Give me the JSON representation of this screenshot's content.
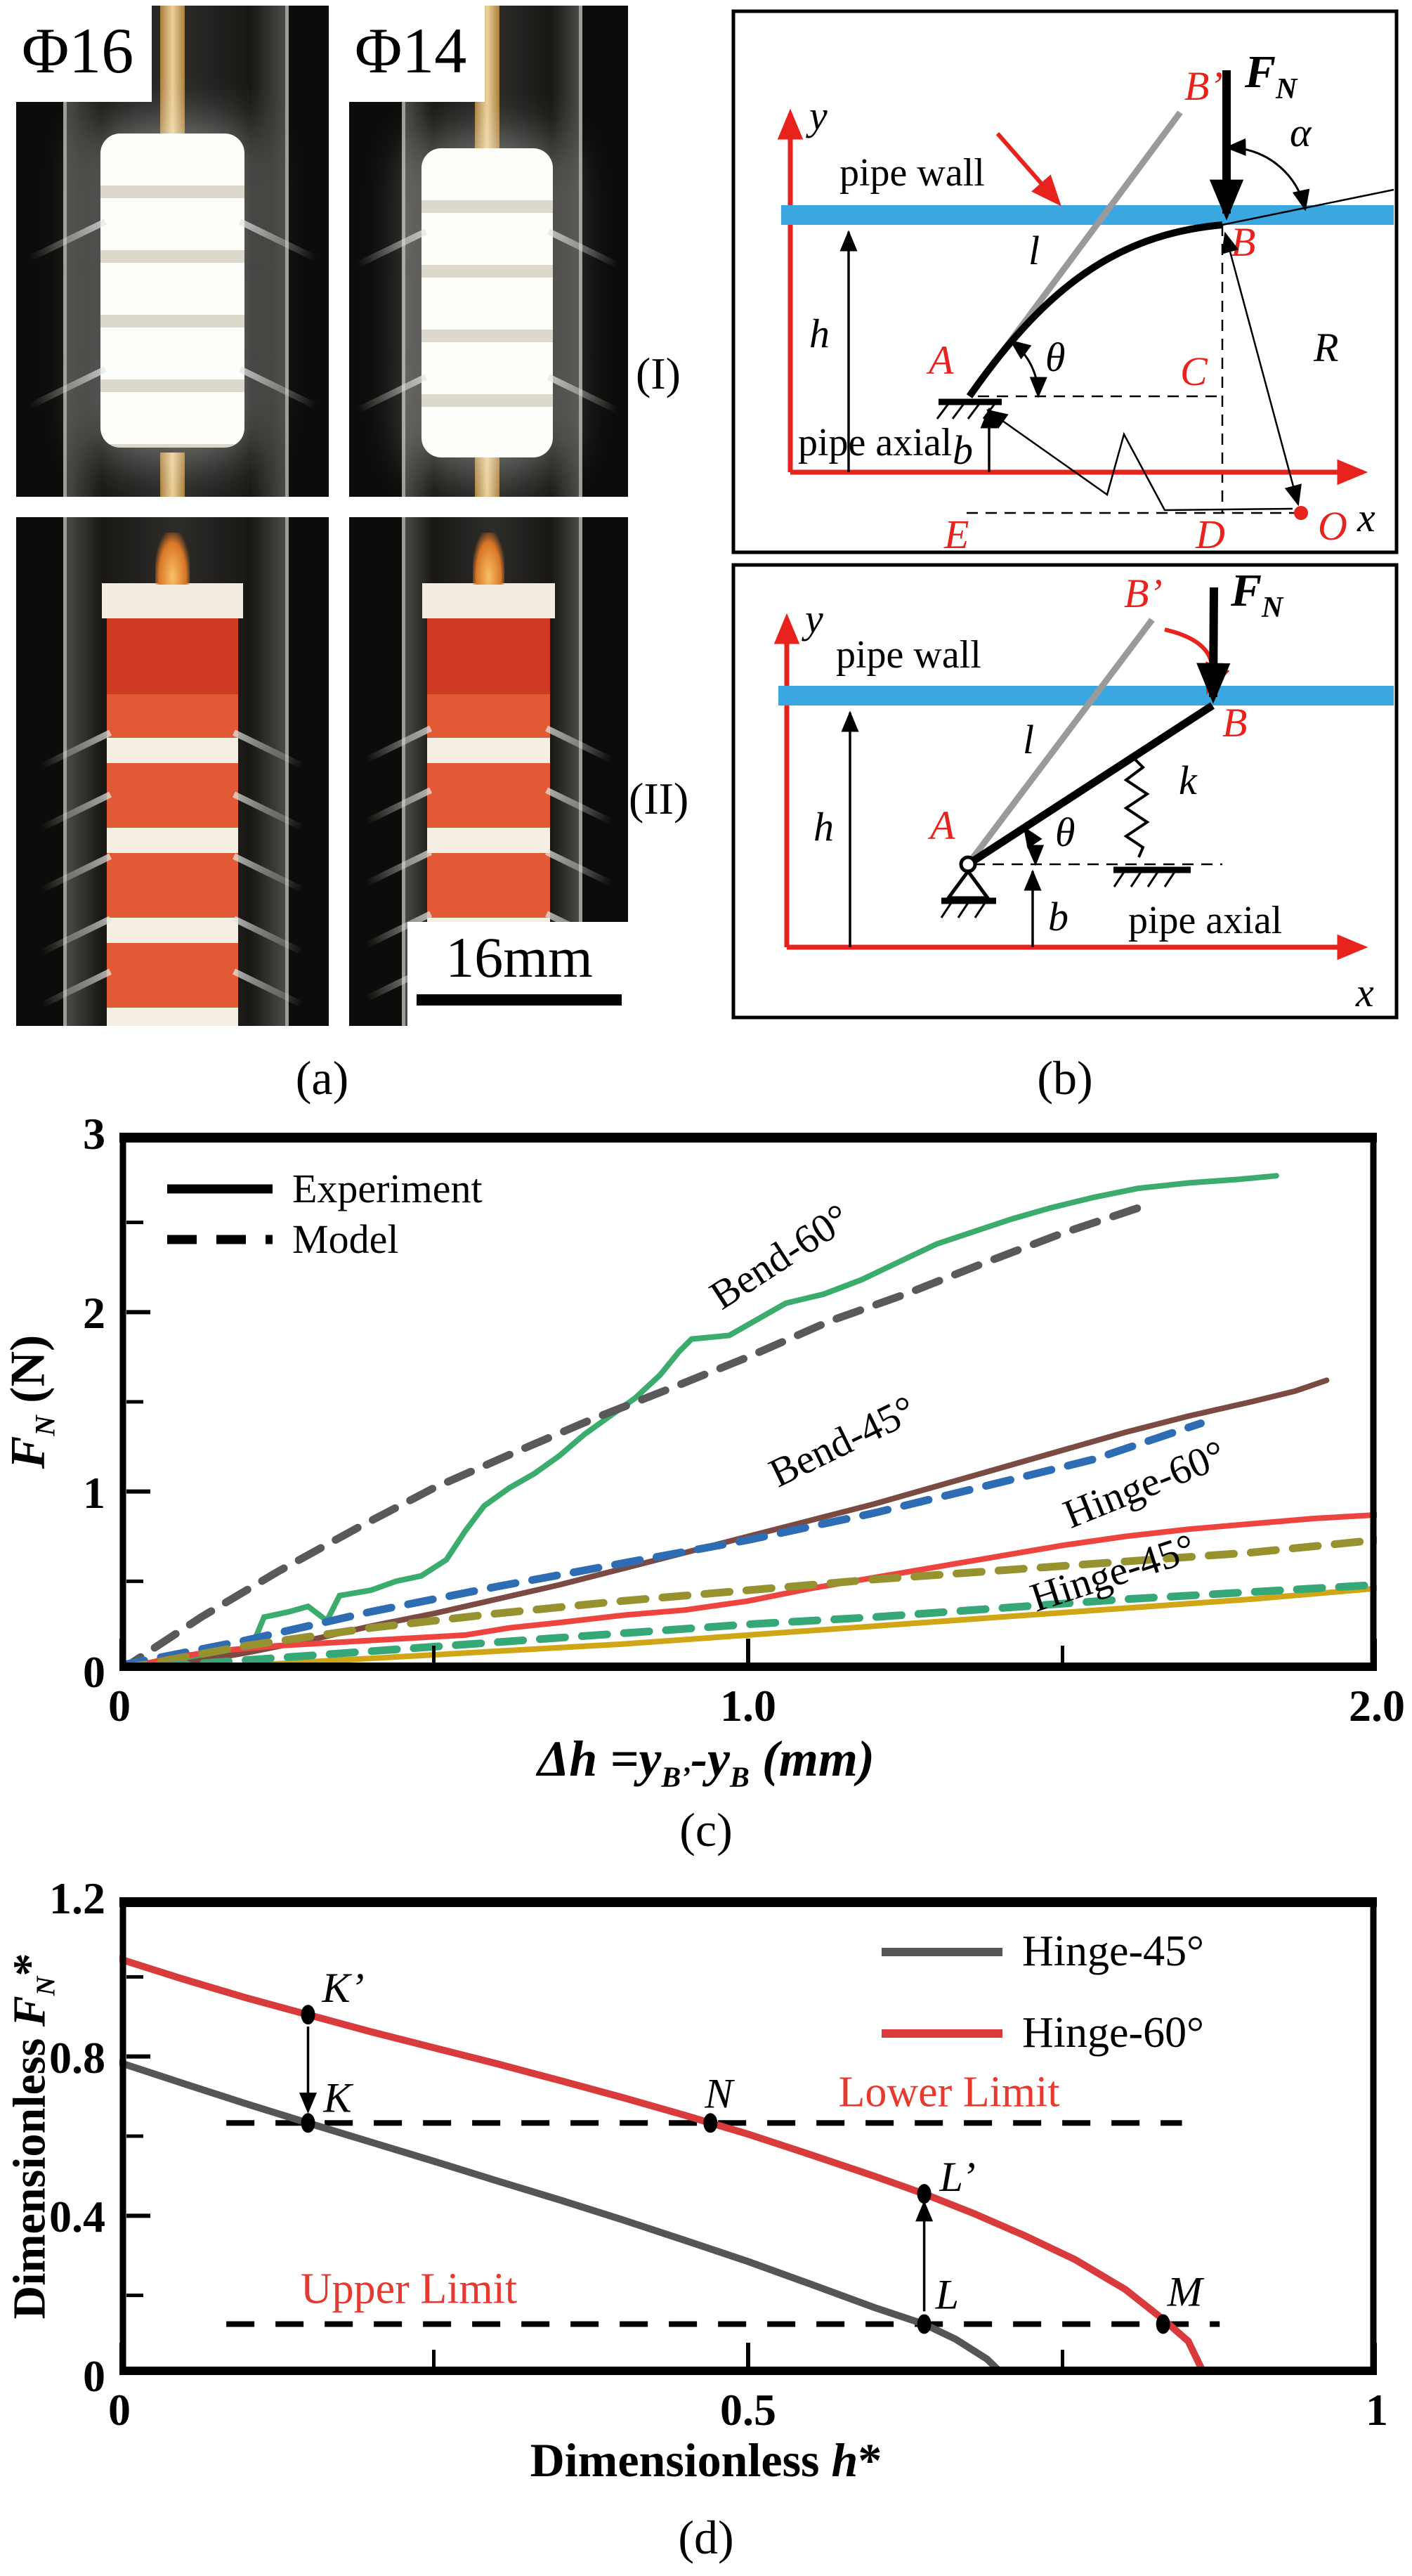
{
  "colors": {
    "diagram_red": "#e8231d",
    "pipe_wall_blue": "#3aa7e0",
    "gray_line": "#9a9a9a",
    "limit_text_red": "#e8392f"
  },
  "panel_a": {
    "caption": "(a)",
    "photo_labels": [
      "Φ16",
      "Φ14"
    ],
    "scale_bar": "16mm"
  },
  "panel_b": {
    "caption": "(b)",
    "roman1": "(I)",
    "roman2": "(II)",
    "d1": {
      "pipe_wall": "pipe wall",
      "pipe_axial": "pipe axial",
      "y": "y",
      "x": "x",
      "h": "h",
      "b": "b",
      "l": "l",
      "theta": "θ",
      "alpha": "α",
      "R": "R",
      "F": "F",
      "F_sub": "N",
      "A": "A",
      "B": "B",
      "Bp": "B’",
      "C": "C",
      "D": "D",
      "E": "E",
      "O": "O"
    },
    "d2": {
      "pipe_wall": "pipe wall",
      "pipe_axial": "pipe axial",
      "y": "y",
      "x": "x",
      "h": "h",
      "b": "b",
      "l": "l",
      "theta": "θ",
      "k": "k",
      "F": "F",
      "F_sub": "N",
      "A": "A",
      "B": "B",
      "Bp": "B’"
    }
  },
  "panel_c": {
    "caption": "(c)",
    "legend": [
      "Experiment",
      "Model"
    ],
    "ylabel": {
      "main": "F",
      "sub": "N",
      "unit": " (N)"
    },
    "xlabel": {
      "p1": "Δh =y",
      "s1": "B’",
      "p2": "-y",
      "s2": "B",
      "p3": " (mm)"
    },
    "curve_labels": [
      "Bend-60°",
      "Bend-45°",
      "Hinge-60°",
      "Hinge-45°"
    ]
  },
  "panel_d": {
    "caption": "(d)",
    "legend": [
      "Hinge-45°",
      "Hinge-60°"
    ],
    "ylabel": {
      "p1": "Dimensionless ",
      "main": "F",
      "sub": "N",
      "star": "*"
    },
    "xlabel": {
      "p1": "Dimensionless ",
      "main": "h",
      "star": "*"
    },
    "lower_limit": "Lower Limit",
    "upper_limit": "Upper Limit"
  },
  "chart_data": [
    {
      "type": "line",
      "title": "Normal force vs wall displacement",
      "xlabel": "Δh = yB' - yB (mm)",
      "ylabel": "FN (N)",
      "xlim": [
        0,
        2
      ],
      "ylim": [
        0,
        3
      ],
      "grid": false,
      "legend_position": "top-left",
      "xticks": {
        "major": [
          0,
          1,
          2
        ],
        "labels": [
          "0",
          "1.0",
          "2.0"
        ],
        "minor": [
          0.5,
          1.5
        ]
      },
      "yticks": {
        "major": [
          0,
          1,
          2,
          3
        ],
        "labels": [
          "0",
          "1",
          "2",
          "3"
        ],
        "minor": [
          0.5,
          1.5,
          2.5
        ]
      },
      "series": [
        {
          "name": "Bend-60° Experiment",
          "style": "solid",
          "color": "#3cab6e",
          "points": [
            [
              0,
              0.02
            ],
            [
              0.05,
              0.04
            ],
            [
              0.1,
              0.06
            ],
            [
              0.14,
              0.08
            ],
            [
              0.18,
              0.1
            ],
            [
              0.21,
              0.13
            ],
            [
              0.23,
              0.3
            ],
            [
              0.27,
              0.33
            ],
            [
              0.3,
              0.36
            ],
            [
              0.33,
              0.28
            ],
            [
              0.35,
              0.42
            ],
            [
              0.4,
              0.45
            ],
            [
              0.44,
              0.5
            ],
            [
              0.48,
              0.53
            ],
            [
              0.52,
              0.62
            ],
            [
              0.55,
              0.78
            ],
            [
              0.58,
              0.92
            ],
            [
              0.62,
              1.02
            ],
            [
              0.66,
              1.1
            ],
            [
              0.7,
              1.2
            ],
            [
              0.74,
              1.32
            ],
            [
              0.78,
              1.42
            ],
            [
              0.82,
              1.52
            ],
            [
              0.86,
              1.65
            ],
            [
              0.89,
              1.78
            ],
            [
              0.91,
              1.85
            ],
            [
              0.97,
              1.87
            ],
            [
              1.02,
              1.97
            ],
            [
              1.06,
              2.05
            ],
            [
              1.12,
              2.1
            ],
            [
              1.18,
              2.18
            ],
            [
              1.24,
              2.28
            ],
            [
              1.3,
              2.38
            ],
            [
              1.36,
              2.45
            ],
            [
              1.42,
              2.52
            ],
            [
              1.48,
              2.58
            ],
            [
              1.55,
              2.64
            ],
            [
              1.62,
              2.69
            ],
            [
              1.7,
              2.72
            ],
            [
              1.78,
              2.74
            ],
            [
              1.84,
              2.76
            ]
          ]
        },
        {
          "name": "Bend-60° Model",
          "style": "dashed",
          "color": "#595959",
          "points": [
            [
              0,
              0
            ],
            [
              0.13,
              0.3
            ],
            [
              0.25,
              0.55
            ],
            [
              0.38,
              0.8
            ],
            [
              0.5,
              1.02
            ],
            [
              0.63,
              1.22
            ],
            [
              0.75,
              1.4
            ],
            [
              0.88,
              1.58
            ],
            [
              1.0,
              1.75
            ],
            [
              1.13,
              1.95
            ],
            [
              1.25,
              2.1
            ],
            [
              1.38,
              2.28
            ],
            [
              1.5,
              2.44
            ],
            [
              1.62,
              2.58
            ]
          ]
        },
        {
          "name": "Bend-45° Experiment",
          "style": "solid",
          "color": "#7b4a42",
          "points": [
            [
              0,
              0
            ],
            [
              0.1,
              0.04
            ],
            [
              0.2,
              0.1
            ],
            [
              0.3,
              0.17
            ],
            [
              0.4,
              0.25
            ],
            [
              0.5,
              0.32
            ],
            [
              0.6,
              0.4
            ],
            [
              0.7,
              0.48
            ],
            [
              0.8,
              0.57
            ],
            [
              0.9,
              0.66
            ],
            [
              1.0,
              0.75
            ],
            [
              1.1,
              0.84
            ],
            [
              1.2,
              0.93
            ],
            [
              1.3,
              1.03
            ],
            [
              1.4,
              1.13
            ],
            [
              1.5,
              1.23
            ],
            [
              1.6,
              1.33
            ],
            [
              1.7,
              1.42
            ],
            [
              1.8,
              1.5
            ],
            [
              1.87,
              1.56
            ],
            [
              1.92,
              1.62
            ]
          ]
        },
        {
          "name": "Bend-45° Model",
          "style": "dashed",
          "color": "#2e6db4",
          "points": [
            [
              0,
              0.03
            ],
            [
              0.2,
              0.17
            ],
            [
              0.4,
              0.33
            ],
            [
              0.6,
              0.47
            ],
            [
              0.8,
              0.6
            ],
            [
              1.0,
              0.73
            ],
            [
              1.2,
              0.88
            ],
            [
              1.4,
              1.05
            ],
            [
              1.55,
              1.18
            ],
            [
              1.72,
              1.38
            ]
          ]
        },
        {
          "name": "Hinge-60° Experiment",
          "style": "solid",
          "color": "#ee4440",
          "points": [
            [
              0,
              0.01
            ],
            [
              0.08,
              0.07
            ],
            [
              0.15,
              0.11
            ],
            [
              0.25,
              0.14
            ],
            [
              0.35,
              0.16
            ],
            [
              0.45,
              0.18
            ],
            [
              0.55,
              0.2
            ],
            [
              0.62,
              0.24
            ],
            [
              0.7,
              0.27
            ],
            [
              0.8,
              0.31
            ],
            [
              0.9,
              0.34
            ],
            [
              1.0,
              0.39
            ],
            [
              1.1,
              0.46
            ],
            [
              1.2,
              0.52
            ],
            [
              1.3,
              0.58
            ],
            [
              1.4,
              0.64
            ],
            [
              1.5,
              0.7
            ],
            [
              1.6,
              0.75
            ],
            [
              1.7,
              0.79
            ],
            [
              1.8,
              0.82
            ],
            [
              1.9,
              0.85
            ],
            [
              2.0,
              0.87
            ]
          ]
        },
        {
          "name": "Hinge-60° Model",
          "style": "dashed",
          "color": "#96922f",
          "points": [
            [
              0,
              0.01
            ],
            [
              0.2,
              0.14
            ],
            [
              0.4,
              0.24
            ],
            [
              0.6,
              0.32
            ],
            [
              0.8,
              0.39
            ],
            [
              1.0,
              0.45
            ],
            [
              1.2,
              0.51
            ],
            [
              1.4,
              0.56
            ],
            [
              1.6,
              0.61
            ],
            [
              1.8,
              0.66
            ],
            [
              2.0,
              0.73
            ]
          ]
        },
        {
          "name": "Hinge-45° Experiment",
          "style": "solid",
          "color": "#d0a516",
          "points": [
            [
              0,
              0
            ],
            [
              0.2,
              0.03
            ],
            [
              0.4,
              0.07
            ],
            [
              0.6,
              0.11
            ],
            [
              0.8,
              0.15
            ],
            [
              1.0,
              0.2
            ],
            [
              1.2,
              0.25
            ],
            [
              1.4,
              0.3
            ],
            [
              1.6,
              0.35
            ],
            [
              1.8,
              0.4
            ],
            [
              2.0,
              0.46
            ]
          ]
        },
        {
          "name": "Hinge-45° Model",
          "style": "dashed",
          "color": "#36a877",
          "points": [
            [
              0,
              0.01
            ],
            [
              0.2,
              0.06
            ],
            [
              0.4,
              0.11
            ],
            [
              0.6,
              0.16
            ],
            [
              0.8,
              0.21
            ],
            [
              1.0,
              0.26
            ],
            [
              1.2,
              0.3
            ],
            [
              1.4,
              0.35
            ],
            [
              1.6,
              0.4
            ],
            [
              1.8,
              0.44
            ],
            [
              2.0,
              0.48
            ]
          ]
        }
      ]
    },
    {
      "type": "line",
      "title": "Dimensionless normal force vs dimensionless height",
      "xlabel": "Dimensionless h*",
      "ylabel": "Dimensionless FN*",
      "xlim": [
        0,
        1
      ],
      "ylim": [
        0,
        1.2
      ],
      "grid": false,
      "legend_position": "top-right",
      "xticks": {
        "major": [
          0,
          0.5,
          1
        ],
        "labels": [
          "0",
          "0.5",
          "1"
        ],
        "minor": [
          0.25,
          0.75
        ]
      },
      "yticks": {
        "major": [
          0,
          0.4,
          0.8,
          1.2
        ],
        "labels": [
          "0",
          "0.4",
          "0.8",
          "1.2"
        ],
        "minor": [
          0.2,
          0.6,
          1.0
        ]
      },
      "series": [
        {
          "name": "Hinge-45°",
          "style": "solid",
          "color": "#555555",
          "points": [
            [
              0,
              0.785
            ],
            [
              0.05,
              0.733
            ],
            [
              0.1,
              0.682
            ],
            [
              0.15,
              0.633
            ],
            [
              0.2,
              0.585
            ],
            [
              0.25,
              0.537
            ],
            [
              0.3,
              0.488
            ],
            [
              0.35,
              0.44
            ],
            [
              0.4,
              0.39
            ],
            [
              0.45,
              0.338
            ],
            [
              0.5,
              0.285
            ],
            [
              0.55,
              0.228
            ],
            [
              0.6,
              0.17
            ],
            [
              0.64,
              0.128
            ],
            [
              0.665,
              0.09
            ],
            [
              0.69,
              0.04
            ],
            [
              0.703,
              0
            ]
          ]
        },
        {
          "name": "Hinge-60°",
          "style": "solid",
          "color": "#d93a3c",
          "points": [
            [
              0,
              1.045
            ],
            [
              0.05,
              0.995
            ],
            [
              0.1,
              0.948
            ],
            [
              0.15,
              0.905
            ],
            [
              0.2,
              0.862
            ],
            [
              0.25,
              0.822
            ],
            [
              0.3,
              0.782
            ],
            [
              0.35,
              0.74
            ],
            [
              0.4,
              0.697
            ],
            [
              0.45,
              0.652
            ],
            [
              0.47,
              0.633
            ],
            [
              0.5,
              0.605
            ],
            [
              0.55,
              0.553
            ],
            [
              0.6,
              0.5
            ],
            [
              0.64,
              0.455
            ],
            [
              0.68,
              0.405
            ],
            [
              0.72,
              0.35
            ],
            [
              0.76,
              0.29
            ],
            [
              0.8,
              0.215
            ],
            [
              0.83,
              0.14
            ],
            [
              0.85,
              0.085
            ],
            [
              0.863,
              0
            ]
          ]
        }
      ],
      "limit_lines": [
        {
          "name": "Lower Limit",
          "y": 0.633,
          "x0": 0.085,
          "x1": 0.845
        },
        {
          "name": "Upper Limit",
          "y": 0.128,
          "x0": 0.085,
          "x1": 0.875
        }
      ],
      "points": [
        {
          "label": "K’",
          "x": 0.15,
          "y": 0.905
        },
        {
          "label": "K",
          "x": 0.15,
          "y": 0.633
        },
        {
          "label": "N",
          "x": 0.47,
          "y": 0.633
        },
        {
          "label": "L’",
          "x": 0.64,
          "y": 0.455
        },
        {
          "label": "L",
          "x": 0.64,
          "y": 0.128
        },
        {
          "label": "M",
          "x": 0.83,
          "y": 0.128
        }
      ],
      "arrows": [
        {
          "x": 0.15,
          "y_from": 0.875,
          "y_to": 0.665
        },
        {
          "x": 0.64,
          "y_from": 0.16,
          "y_to": 0.43
        }
      ]
    }
  ]
}
